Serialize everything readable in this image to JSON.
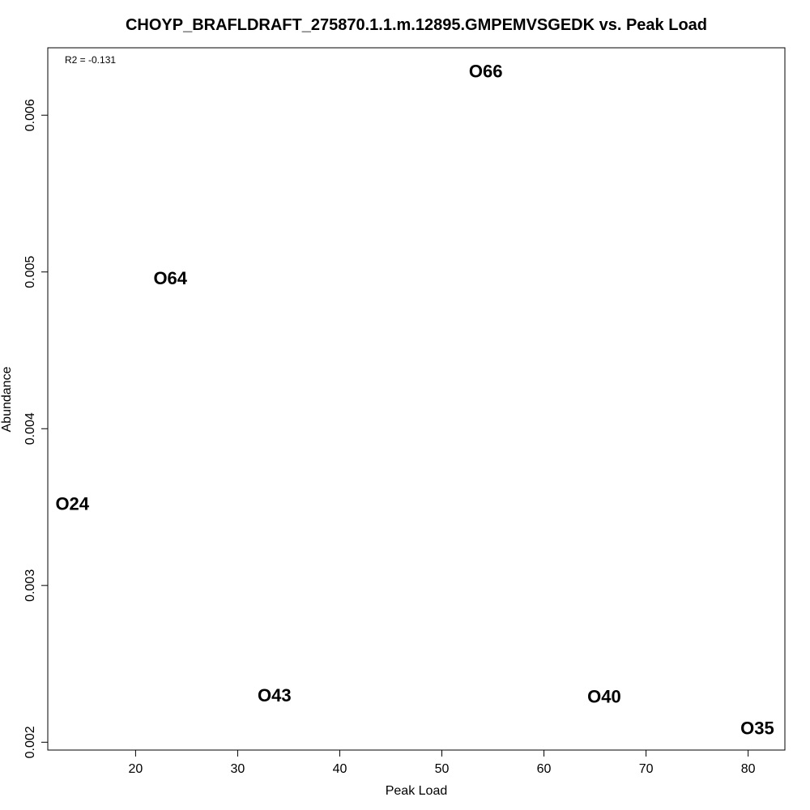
{
  "chart_data": {
    "type": "scatter",
    "title": "CHOYP_BRAFLDRAFT_275870.1.1.m.12895.GMPEMVSGEDK vs. Peak Load",
    "xlabel": "Peak Load",
    "ylabel": "Abundance",
    "annotation": "R2 = -0.131",
    "xlim": [
      11.4,
      83.6
    ],
    "ylim": [
      0.00195,
      0.00643
    ],
    "xticks": [
      20,
      30,
      40,
      50,
      60,
      70,
      80
    ],
    "xtick_labels": [
      "20",
      "30",
      "40",
      "50",
      "60",
      "70",
      "80"
    ],
    "yticks": [
      0.002,
      0.003,
      0.004,
      0.005,
      0.006
    ],
    "ytick_labels": [
      "0.002",
      "0.003",
      "0.004",
      "0.005",
      "0.006"
    ],
    "grid": false,
    "point_style": "text-label",
    "points": [
      {
        "label": "O66",
        "x": 54.3,
        "y": 0.00628
      },
      {
        "label": "O64",
        "x": 23.4,
        "y": 0.00496
      },
      {
        "label": "O24",
        "x": 13.8,
        "y": 0.00352
      },
      {
        "label": "O43",
        "x": 33.6,
        "y": 0.0023
      },
      {
        "label": "O40",
        "x": 65.9,
        "y": 0.00229
      },
      {
        "label": "O35",
        "x": 80.9,
        "y": 0.00209
      }
    ],
    "colors": {
      "text": "#000000",
      "axis": "#000000",
      "background": "#ffffff"
    }
  }
}
